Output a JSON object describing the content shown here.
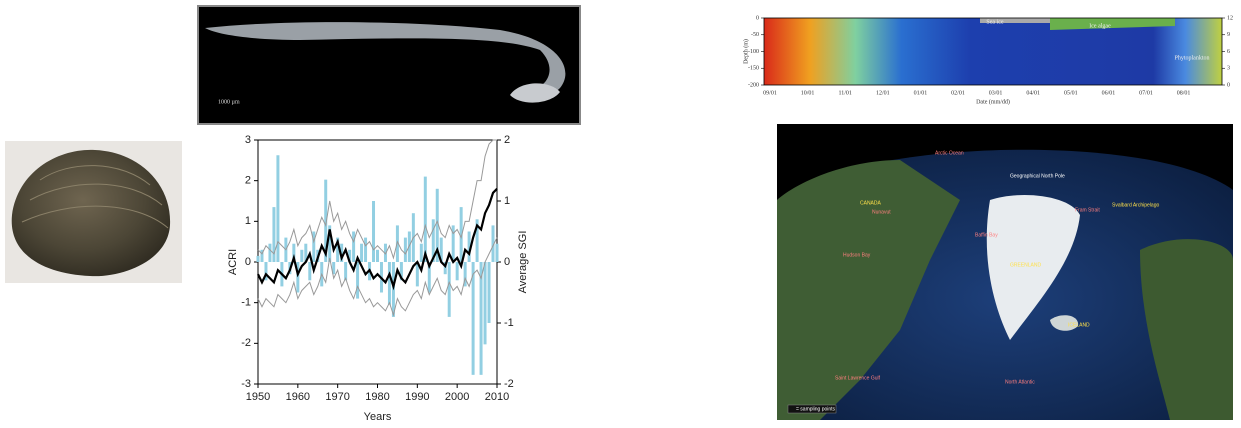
{
  "chart_data": [
    {
      "type": "bar",
      "xlabel": "Years",
      "ylabel": "ACRI",
      "y2label": "Average SGI",
      "x": [
        1950,
        1951,
        1952,
        1953,
        1954,
        1955,
        1956,
        1957,
        1958,
        1959,
        1960,
        1961,
        1962,
        1963,
        1964,
        1965,
        1966,
        1967,
        1968,
        1969,
        1970,
        1971,
        1972,
        1973,
        1974,
        1975,
        1976,
        1977,
        1978,
        1979,
        1980,
        1981,
        1982,
        1983,
        1984,
        1985,
        1986,
        1987,
        1988,
        1989,
        1990,
        1991,
        1992,
        1993,
        1994,
        1995,
        1996,
        1997,
        1998,
        1999,
        2000,
        2001,
        2002,
        2003,
        2004,
        2005,
        2006,
        2007,
        2008,
        2009,
        2010
      ],
      "xlim": [
        1950,
        2010
      ],
      "xticks": [
        1950,
        1960,
        1970,
        1980,
        1990,
        2000,
        2010
      ],
      "ylim": [
        -3,
        3
      ],
      "yticks": [
        -3,
        -2,
        -1,
        0,
        1,
        2,
        3
      ],
      "y2lim": [
        -2,
        2
      ],
      "y2ticks": [
        -2,
        -1,
        0,
        1,
        2
      ],
      "series": [
        {
          "type": "bar",
          "axis": "y2",
          "color": "#92cfe2",
          "values": [
            0.1,
            0.2,
            -0.3,
            0.3,
            0.9,
            1.75,
            -0.4,
            0.4,
            -0.2,
            0.3,
            -0.5,
            0.2,
            0.3,
            -0.3,
            0.5,
            0.2,
            -0.4,
            1.35,
            0.6,
            -0.2,
            0.4,
            0.3,
            -0.3,
            0.2,
            0.5,
            -0.6,
            0.3,
            0.4,
            -0.3,
            1.0,
            0.2,
            -0.5,
            0.3,
            -0.7,
            -0.9,
            0.6,
            -0.3,
            0.4,
            0.5,
            0.8,
            -0.4,
            0.3,
            1.4,
            -0.5,
            0.7,
            1.2,
            0.4,
            -0.2,
            -0.9,
            0.6,
            -0.3,
            0.9,
            -0.4,
            0.5,
            -1.85,
            0.7,
            -1.85,
            -1.35,
            -1.0,
            0.6,
            0.3
          ]
        },
        {
          "type": "line",
          "color": "#999999",
          "values": [
            0.3,
            0.2,
            0.4,
            0.3,
            0.2,
            0.5,
            0.4,
            0.3,
            0.5,
            0.8,
            0.4,
            0.6,
            0.7,
            0.9,
            0.5,
            0.8,
            1.1,
            0.9,
            1.5,
            1.0,
            1.2,
            0.8,
            1.0,
            0.7,
            0.5,
            0.8,
            0.6,
            0.4,
            0.5,
            0.3,
            0.4,
            0.3,
            0.2,
            0.4,
            0.1,
            0.5,
            0.3,
            0.2,
            0.4,
            0.6,
            0.7,
            0.5,
            0.9,
            0.6,
            0.8,
            1.0,
            0.7,
            0.6,
            0.9,
            0.7,
            0.8,
            0.6,
            1.0,
            1.0,
            1.5,
            2.0,
            2.0,
            2.6,
            2.9,
            3.0,
            3.0
          ]
        },
        {
          "type": "line",
          "color": "#999999",
          "values": [
            -0.9,
            -1.1,
            -0.9,
            -1.0,
            -1.1,
            -0.8,
            -0.9,
            -1.0,
            -0.8,
            -0.5,
            -0.9,
            -0.7,
            -0.6,
            -0.5,
            -0.8,
            -0.6,
            -0.3,
            -0.5,
            0.1,
            -0.4,
            -0.2,
            -0.6,
            -0.4,
            -0.7,
            -0.9,
            -0.6,
            -0.8,
            -1.0,
            -0.9,
            -1.1,
            -1.0,
            -1.1,
            -1.2,
            -1.0,
            -1.3,
            -0.9,
            -1.1,
            -1.2,
            -1.0,
            -0.8,
            -0.7,
            -0.9,
            -0.5,
            -0.8,
            -0.6,
            -0.4,
            -0.7,
            -0.8,
            -0.5,
            -0.7,
            -0.6,
            -0.8,
            -0.4,
            -0.6,
            -0.3,
            -0.2,
            -0.4,
            0.0,
            0.2,
            0.4,
            0.6
          ]
        },
        {
          "type": "line",
          "color": "#000000",
          "values": [
            -0.3,
            -0.5,
            -0.3,
            -0.4,
            -0.5,
            -0.2,
            -0.3,
            -0.4,
            -0.2,
            0.1,
            -0.3,
            -0.1,
            0.0,
            0.2,
            -0.2,
            0.1,
            0.4,
            0.2,
            0.8,
            0.3,
            0.5,
            0.1,
            0.3,
            0.0,
            -0.2,
            0.1,
            -0.1,
            -0.3,
            -0.2,
            -0.4,
            -0.3,
            -0.4,
            -0.5,
            -0.3,
            -0.6,
            -0.2,
            -0.4,
            -0.5,
            -0.3,
            -0.1,
            0.0,
            -0.2,
            0.2,
            -0.1,
            0.1,
            0.3,
            0.0,
            -0.1,
            0.2,
            0.0,
            0.1,
            -0.1,
            0.3,
            0.2,
            0.6,
            0.9,
            0.8,
            1.2,
            1.4,
            1.7,
            1.8
          ]
        }
      ]
    },
    {
      "type": "heatmap",
      "xlabel": "Date (mm/dd)",
      "ylabel": "Depth (m)",
      "categories": [
        "09/01",
        "10/01",
        "11/01",
        "12/01",
        "01/01",
        "02/01",
        "03/01",
        "04/01",
        "05/01",
        "06/01",
        "07/01",
        "08/01"
      ],
      "ylim": [
        -200,
        0
      ],
      "yticks": [
        0,
        -50,
        -100,
        -150,
        -200
      ],
      "y2lim": [
        0,
        12
      ],
      "y2ticks": [
        0,
        3,
        6,
        9,
        12
      ],
      "annotations": [
        "Sea ice",
        "Ice algae",
        "Phytoplankton"
      ]
    }
  ],
  "shell_image": {
    "scale": "1000 µm"
  },
  "map": {
    "labels": [
      "Arctic Ocean",
      "Geographical North Pole",
      "CANADA",
      "Nunavut",
      "Baffin Bay",
      "Hudson Bay",
      "GREENLAND",
      "Fram Strait",
      "Svalbard Archipelago",
      "ICELAND",
      "North Atlantic",
      "Saint Lawrence Gulf",
      "= sampling points"
    ]
  }
}
